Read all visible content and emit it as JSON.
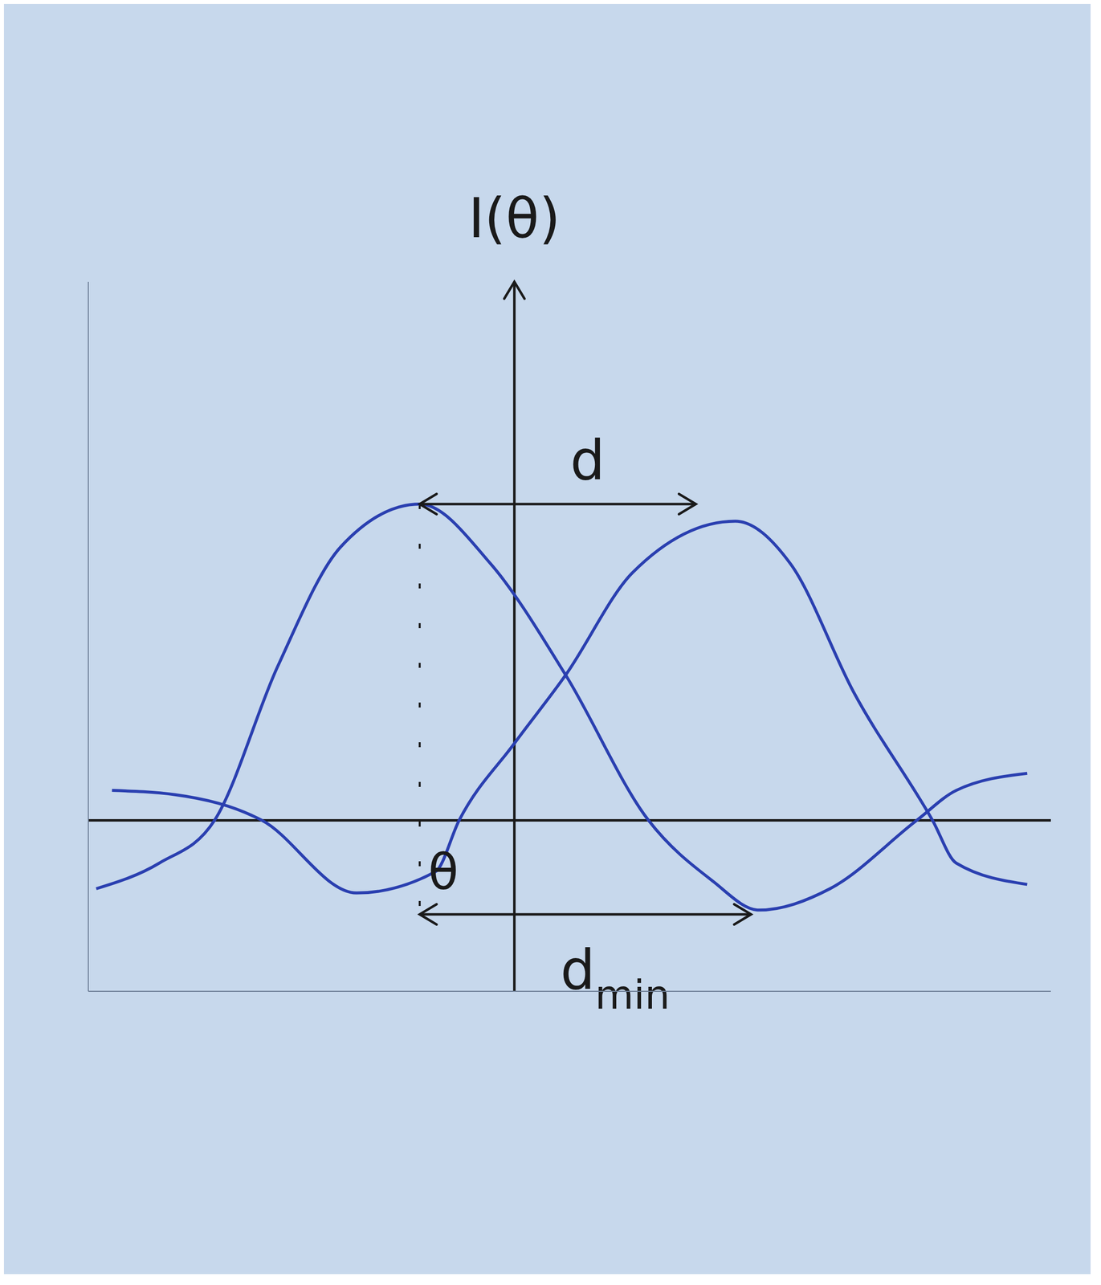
{
  "chart_data": {
    "type": "line",
    "xlabel": "θ",
    "ylabel": "I(θ)",
    "xlim": [
      -5.4,
      6.8
    ],
    "ylim": [
      -2.0,
      6.3
    ],
    "tick_labels": false,
    "grid": false,
    "series": [
      {
        "color": "#2a3fb0",
        "x": [
          -5.3,
          -4.5,
          -3.8,
          -3.0,
          -2.2,
          -1.2,
          -0.3,
          0.65,
          1.7,
          2.5,
          3.1,
          4.0,
          5.1,
          5.6,
          6.5
        ],
        "values": [
          -0.8,
          -0.5,
          0,
          1.8,
          3.2,
          3.7,
          3.0,
          1.7,
          0,
          -0.7,
          -1.05,
          -0.8,
          0,
          0.35,
          0.55
        ]
      },
      {
        "color": "#2a3fb0",
        "x": [
          -5.1,
          -4.3,
          -3.2,
          -2.0,
          -1.0,
          -0.7,
          0,
          0.65,
          1.5,
          2.8,
          3.5,
          4.3,
          5.3,
          5.6,
          6.5
        ],
        "values": [
          0.35,
          0.3,
          0,
          -0.85,
          -0.6,
          0,
          0.9,
          1.7,
          2.9,
          3.5,
          3.0,
          1.5,
          0,
          -0.5,
          -0.75
        ]
      }
    ],
    "annotations": [
      {
        "text": "d",
        "x": [
          -1.2,
          2.3
        ],
        "y": 3.7
      },
      {
        "text": "d",
        "subscript": "min",
        "x": [
          -1.2,
          3.0
        ],
        "y": -1.1
      }
    ]
  }
}
